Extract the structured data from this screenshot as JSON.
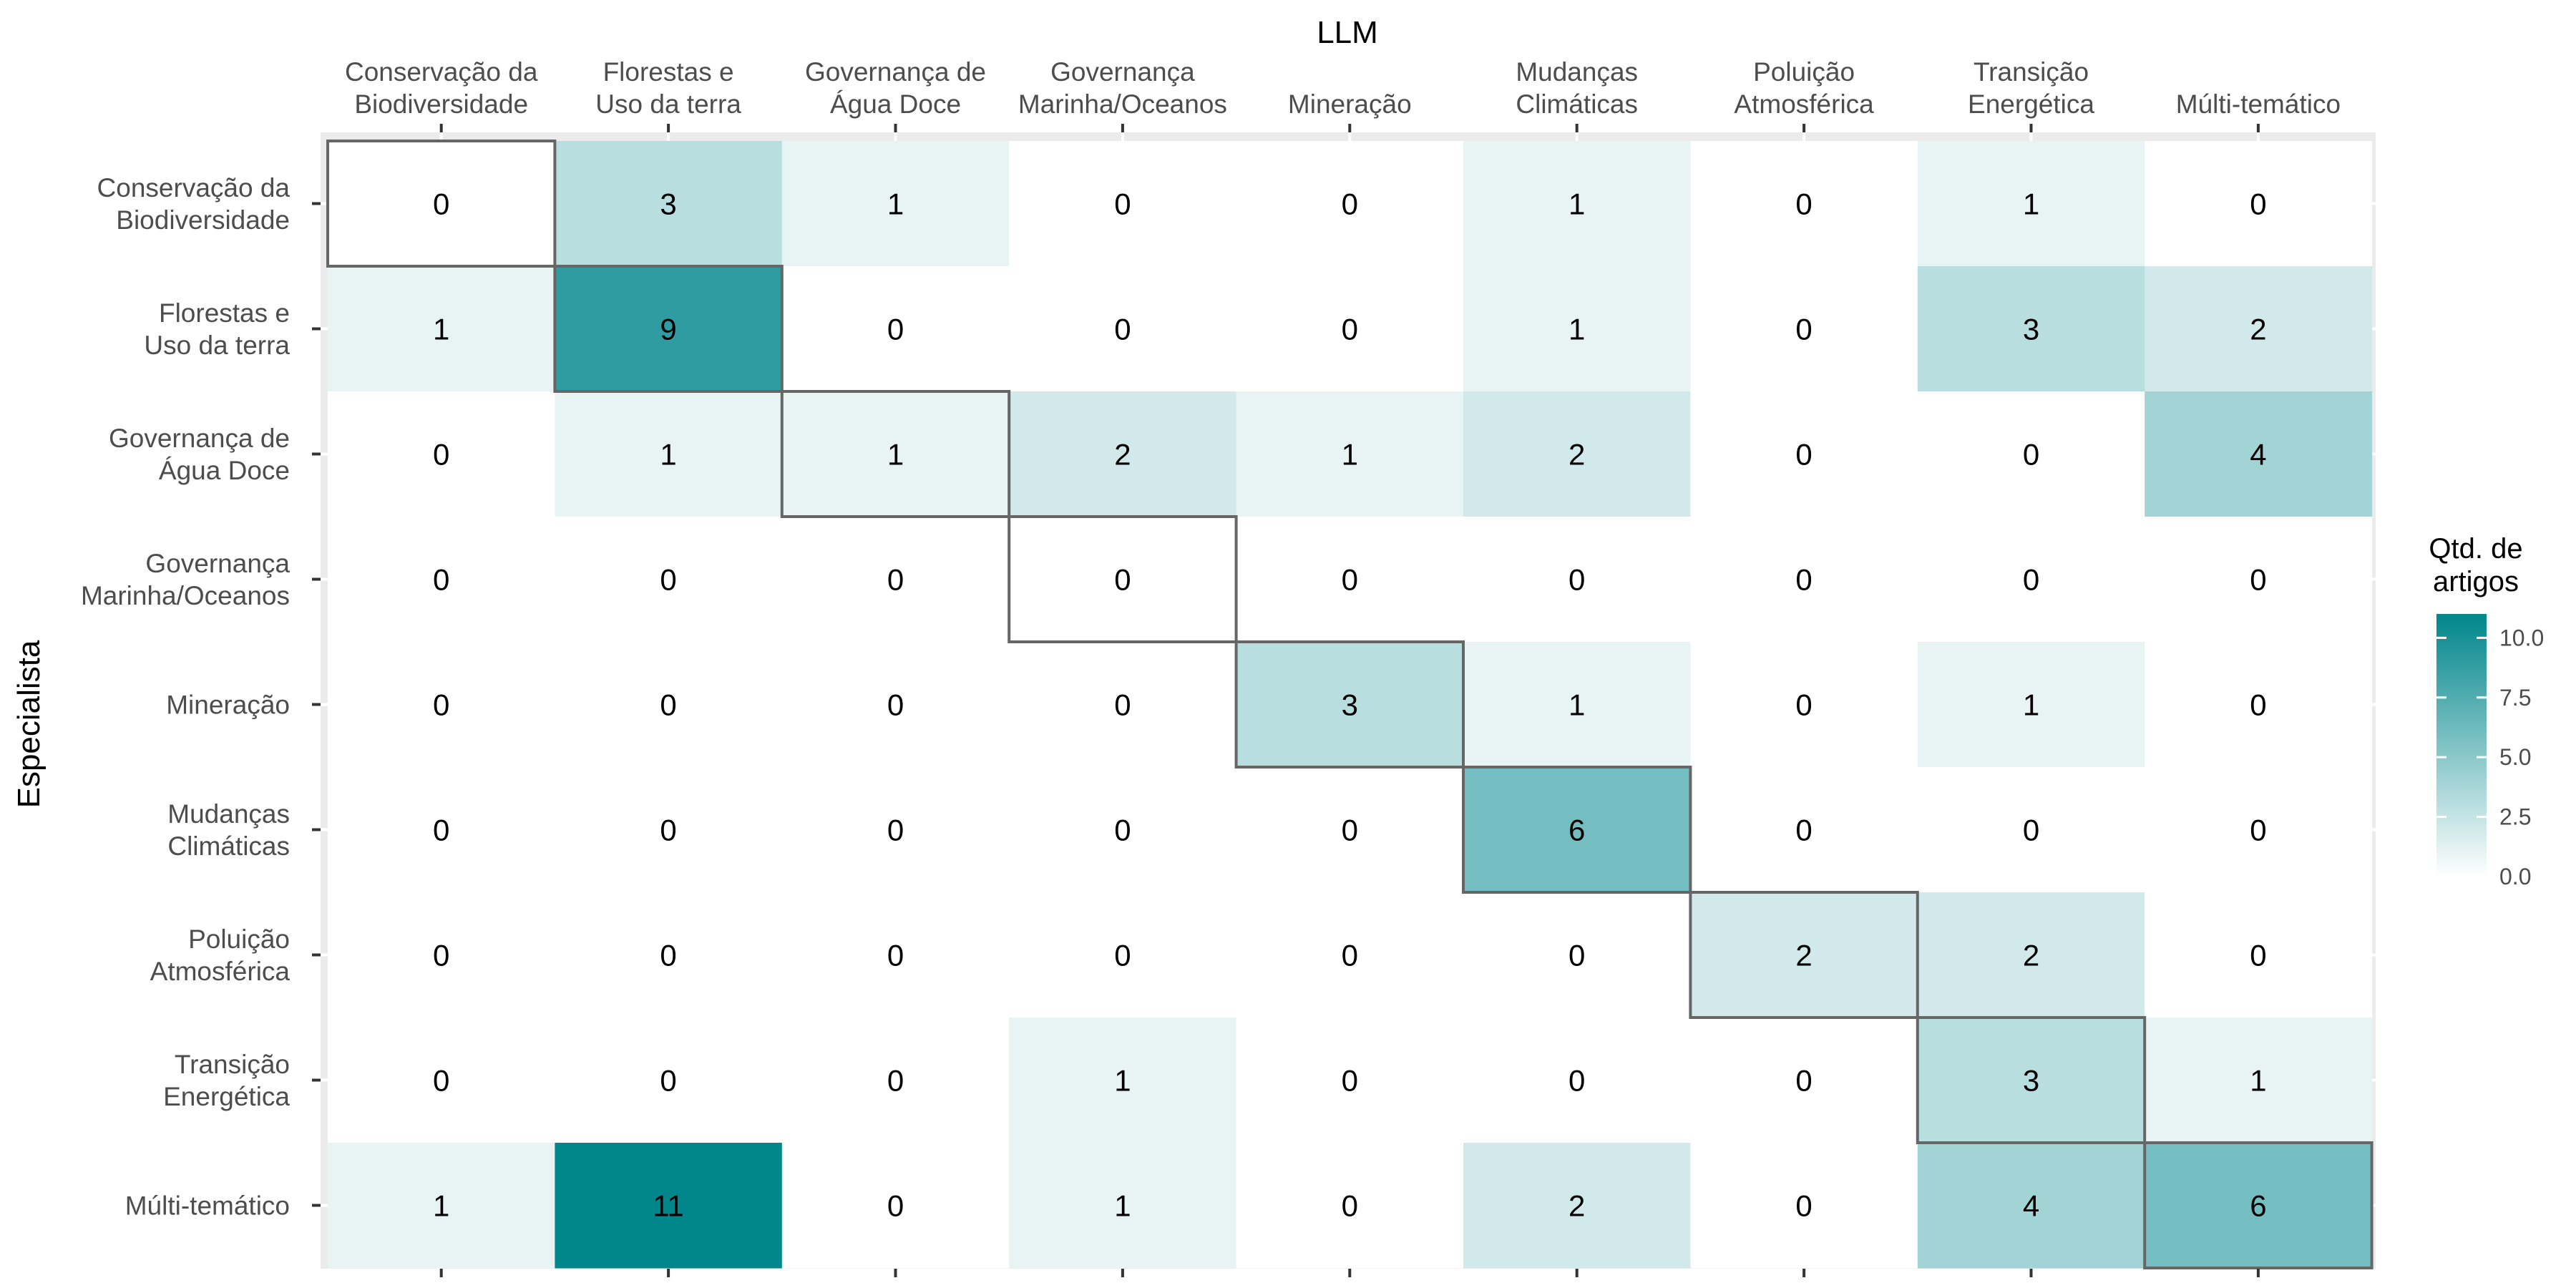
{
  "chart_data": {
    "type": "heatmap",
    "xlabel": "LLM",
    "ylabel": "Especialista",
    "x_categories": [
      [
        "Conservação da",
        "Biodiversidade"
      ],
      [
        "Florestas e",
        "Uso da terra"
      ],
      [
        "Governança de",
        "Água Doce"
      ],
      [
        "Governança",
        "Marinha/Oceanos"
      ],
      [
        "Mineração"
      ],
      [
        "Mudanças",
        "Climáticas"
      ],
      [
        "Poluição",
        "Atmosférica"
      ],
      [
        "Transição",
        "Energética"
      ],
      [
        "Múlti-temático"
      ]
    ],
    "y_categories": [
      [
        "Conservação da",
        "Biodiversidade"
      ],
      [
        "Florestas e",
        "Uso da terra"
      ],
      [
        "Governança de",
        "Água Doce"
      ],
      [
        "Governança",
        "Marinha/Oceanos"
      ],
      [
        "Mineração"
      ],
      [
        "Mudanças",
        "Climáticas"
      ],
      [
        "Poluição",
        "Atmosférica"
      ],
      [
        "Transição",
        "Energética"
      ],
      [
        "Múlti-temático"
      ]
    ],
    "values": [
      [
        0,
        3,
        1,
        0,
        0,
        1,
        0,
        1,
        0
      ],
      [
        1,
        9,
        0,
        0,
        0,
        1,
        0,
        3,
        2
      ],
      [
        0,
        1,
        1,
        2,
        1,
        2,
        0,
        0,
        4
      ],
      [
        0,
        0,
        0,
        0,
        0,
        0,
        0,
        0,
        0
      ],
      [
        0,
        0,
        0,
        0,
        3,
        1,
        0,
        1,
        0
      ],
      [
        0,
        0,
        0,
        0,
        0,
        6,
        0,
        0,
        0
      ],
      [
        0,
        0,
        0,
        0,
        0,
        0,
        2,
        2,
        0
      ],
      [
        0,
        0,
        0,
        1,
        0,
        0,
        0,
        3,
        1
      ],
      [
        1,
        11,
        0,
        1,
        0,
        2,
        0,
        4,
        6
      ]
    ],
    "diagonal_outlined": true,
    "legend": {
      "title": [
        "Qtd. de",
        "artigos"
      ],
      "ticks": [
        "10.0",
        "7.5",
        "5.0",
        "2.5",
        "0.0"
      ],
      "tick_values": [
        10,
        7.5,
        5,
        2.5,
        0
      ],
      "min": 0,
      "max": 11,
      "low_color": "#ffffff",
      "high_color": "#00868b",
      "placement": "right"
    },
    "colors": {
      "panel_background": "#ebebeb",
      "grid_line": "#ffffff",
      "diagonal_outline": "#666666"
    }
  }
}
